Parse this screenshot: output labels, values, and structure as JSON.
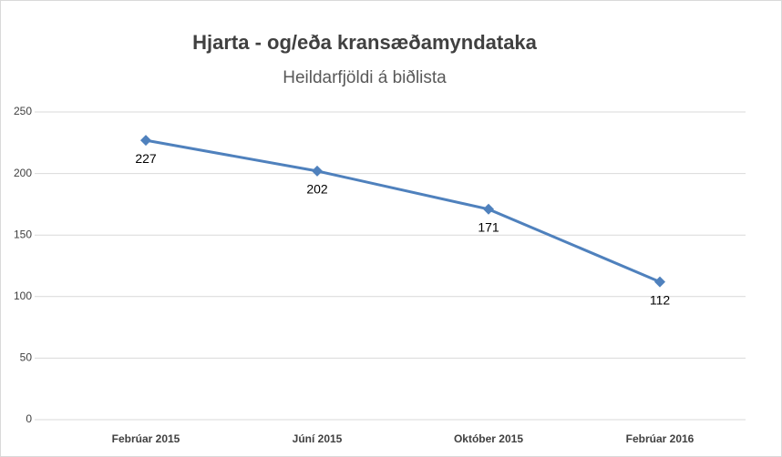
{
  "chart_data": {
    "type": "line",
    "title": "Hjarta - og/eða kransæðamyndataka",
    "subtitle": "Heildarfjöldi á biðlista",
    "categories": [
      "Febrúar 2015",
      "Júní 2015",
      "Október 2015",
      "Febrúar 2016"
    ],
    "series": [
      {
        "name": "Heildarfjöldi á biðlista",
        "color": "#4f81bd",
        "values": [
          227,
          202,
          171,
          112
        ]
      }
    ],
    "ylim": [
      0,
      250
    ],
    "yticks": [
      0,
      50,
      100,
      150,
      200,
      250
    ],
    "grid": true,
    "data_labels": true
  }
}
